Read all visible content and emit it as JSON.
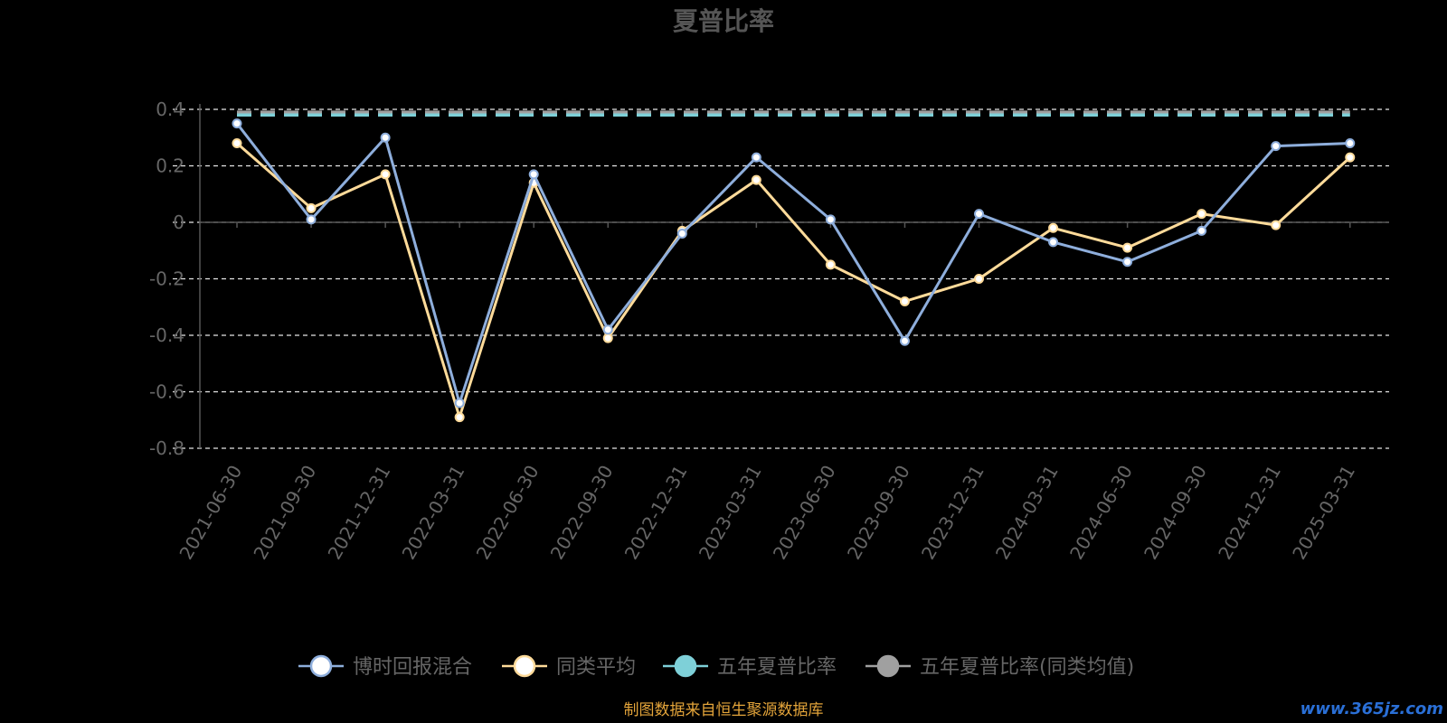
{
  "chart_data": {
    "type": "line",
    "title": "夏普比率",
    "categories": [
      "2021-06-30",
      "2021-09-30",
      "2021-12-31",
      "2022-03-31",
      "2022-06-30",
      "2022-09-30",
      "2022-12-31",
      "2023-03-31",
      "2023-06-30",
      "2023-09-30",
      "2023-12-31",
      "2024-03-31",
      "2024-06-30",
      "2024-09-30",
      "2024-12-31",
      "2025-03-31"
    ],
    "ylim": [
      -0.8,
      0.4
    ],
    "yticks": [
      0.4,
      0.2,
      0,
      -0.2,
      -0.4,
      -0.6,
      -0.8
    ],
    "ytick_labels": [
      "0.4",
      "0.2",
      "0",
      "-0.2",
      "-0.4",
      "-0.6",
      "-0.8"
    ],
    "grid": true,
    "legend_position": "bottom",
    "series": [
      {
        "name": "博时回报混合",
        "color": "#8eaedc",
        "values": [
          0.35,
          0.01,
          0.3,
          -0.64,
          0.17,
          -0.38,
          -0.04,
          0.23,
          0.01,
          -0.42,
          0.03,
          -0.07,
          -0.14,
          -0.03,
          0.27,
          0.28
        ]
      },
      {
        "name": "同类平均",
        "color": "#ffdb9a",
        "values": [
          0.28,
          0.05,
          0.17,
          -0.69,
          0.14,
          -0.41,
          -0.03,
          0.15,
          -0.15,
          -0.28,
          -0.2,
          -0.02,
          -0.09,
          0.03,
          -0.01,
          0.23
        ]
      },
      {
        "name": "五年夏普比率",
        "color": "#7ed0d8",
        "values": [
          0.38,
          0.38,
          0.38,
          0.38,
          0.38,
          0.38,
          0.38,
          0.38,
          0.38,
          0.38,
          0.38,
          0.38,
          0.38,
          0.38,
          0.38,
          0.38
        ]
      },
      {
        "name": "五年夏普比率(同类均值)",
        "color": "#a0a0a0",
        "values": [
          0.39,
          0.39,
          0.39,
          0.39,
          0.39,
          0.39,
          0.39,
          0.39,
          0.39,
          0.39,
          0.39,
          0.39,
          0.39,
          0.39,
          0.39,
          0.39
        ]
      }
    ]
  },
  "source_note": "制图数据来自恒生聚源数据库",
  "watermark": "www.365jz.com",
  "colors": {
    "background": "#000000",
    "title": "#555555",
    "axis_text": "#666666",
    "grid": "#e6e6e6",
    "axis_line": "#555555",
    "source": "#e3a43a",
    "watermark": "#2a6fd6"
  }
}
